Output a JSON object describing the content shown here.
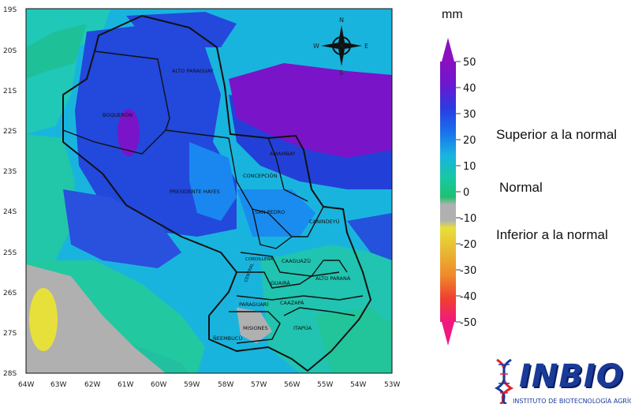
{
  "map": {
    "lat_ticks": [
      "19S",
      "20S",
      "21S",
      "22S",
      "23S",
      "24S",
      "25S",
      "26S",
      "27S",
      "28S"
    ],
    "lon_ticks": [
      "64W",
      "63W",
      "62W",
      "61W",
      "60W",
      "59W",
      "58W",
      "57W",
      "56W",
      "55W",
      "54W",
      "53W"
    ],
    "compass": {
      "n": "N",
      "s": "S",
      "e": "E",
      "w": "W"
    },
    "departments": [
      "ALTO PARAGUAY",
      "BOQUERÓN",
      "PRESIDENTE HAYES",
      "CONCEPCIÓN",
      "AMAMBAY",
      "SAN PEDRO",
      "CANINDEYÚ",
      "CORDILLERA",
      "CAAGUAZÚ",
      "CENTRAL",
      "GUAIRÁ",
      "ALTO PARANÁ",
      "PARAGUARÍ",
      "CAAZAPÁ",
      "MISIONES",
      "ITAPÚA",
      "ÑEEMBUCÚ"
    ]
  },
  "legend": {
    "unit": "mm",
    "ticks": [
      "50",
      "40",
      "30",
      "20",
      "10",
      "0",
      "-10",
      "-20",
      "-30",
      "-40",
      "-50"
    ],
    "colors": [
      "#7a10c8",
      "#2040d8",
      "#1a86ef",
      "#1cc8cc",
      "#1ac07a",
      "#b0b0b0",
      "#e8e03a",
      "#e8b832",
      "#f08a2a",
      "#f04030",
      "#f01880"
    ],
    "categories": {
      "above": "Superior a la normal",
      "normal": "Normal",
      "below": "Inferior a la normal"
    }
  },
  "logo": {
    "name": "INBIO",
    "subtitle": "INSTITUTO DE BIOTECNOLOGÍA AGRÍCOLA",
    "colors": {
      "primary": "#1a3a9a",
      "accent": "#e0202a"
    }
  }
}
